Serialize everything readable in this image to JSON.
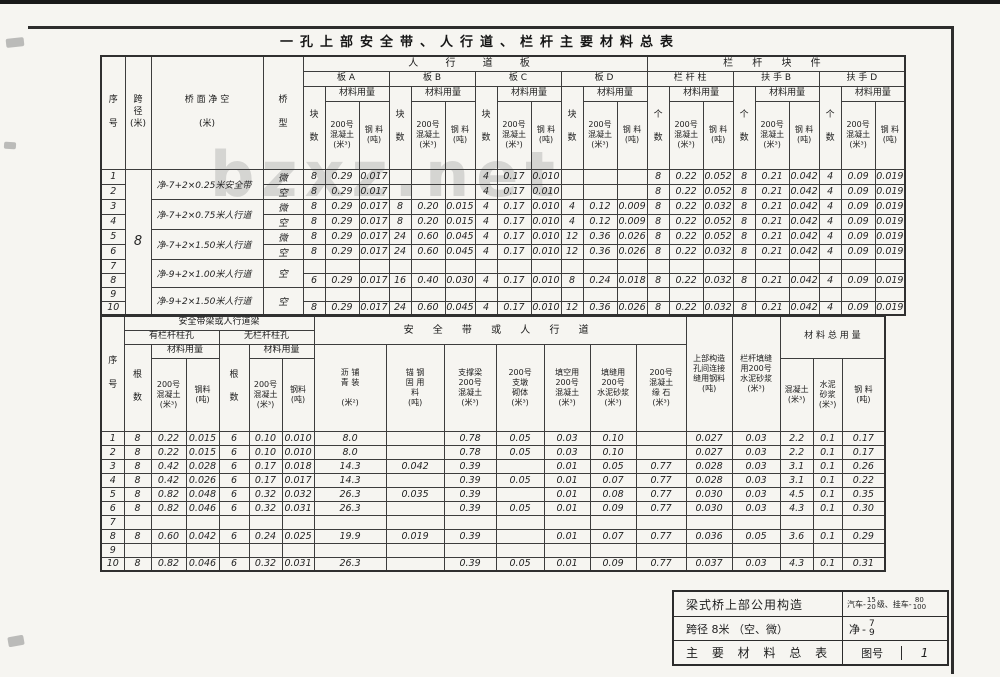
{
  "page": {
    "title": "一孔上部安全带、人行道、栏杆主要材料总表",
    "watermark": "bzxz.net"
  },
  "table1": {
    "headers": {
      "xu_hao": "序\n\n号",
      "kua_jing": "跨\n径\n(米)",
      "qiao_mian": "桥 面 净 空\n\n(米)",
      "qiao_xing": "桥\n\n型",
      "group_renxingdao": "人 行 道 板",
      "group_langan": "栏 杆 块 件",
      "ban_a": "板   A",
      "ban_b": "板   B",
      "ban_c": "板   C",
      "ban_d": "板   D",
      "langanzhu": "栏 杆 柱",
      "fushou_b": "扶 手 B",
      "fushou_d": "扶 手 D",
      "kuai_shu": "块\n\n数",
      "ge_shu": "个\n\n数",
      "cailiao": "材料用量",
      "hunningtu": "200号\n混凝土\n(米³)",
      "gangliao": "钢 料\n(吨)"
    },
    "rows": [
      [
        "1",
        [
          "8",
          10,
          "big"
        ],
        [
          "净-7+2×0.25米安全带",
          2,
          "jk"
        ],
        "微",
        "8",
        "0.29",
        "0.017",
        "",
        "",
        "",
        "4",
        "0.17",
        "0.010",
        "",
        "",
        "",
        "8",
        "0.22",
        "0.052",
        "8",
        "0.21",
        "0.042",
        "4",
        "0.09",
        "0.019"
      ],
      [
        "2",
        "空",
        "8",
        "0.29",
        "0.017",
        "",
        "",
        "",
        "4",
        "0.17",
        "0.010",
        "",
        "",
        "",
        "8",
        "0.22",
        "0.052",
        "8",
        "0.21",
        "0.042",
        "4",
        "0.09",
        "0.019"
      ],
      [
        "3",
        [
          "净-7+2×0.75米人行道",
          2,
          "jk"
        ],
        "微",
        "8",
        "0.29",
        "0.017",
        "8",
        "0.20",
        "0.015",
        "4",
        "0.17",
        "0.010",
        "4",
        "0.12",
        "0.009",
        "8",
        "0.22",
        "0.032",
        "8",
        "0.21",
        "0.042",
        "4",
        "0.09",
        "0.019"
      ],
      [
        "4",
        "空",
        "8",
        "0.29",
        "0.017",
        "8",
        "0.20",
        "0.015",
        "4",
        "0.17",
        "0.010",
        "4",
        "0.12",
        "0.009",
        "8",
        "0.22",
        "0.052",
        "8",
        "0.21",
        "0.042",
        "4",
        "0.09",
        "0.019"
      ],
      [
        "5",
        [
          "净-7+2×1.50米人行道",
          2,
          "jk"
        ],
        "微",
        "8",
        "0.29",
        "0.017",
        "24",
        "0.60",
        "0.045",
        "4",
        "0.17",
        "0.010",
        "12",
        "0.36",
        "0.026",
        "8",
        "0.22",
        "0.052",
        "8",
        "0.21",
        "0.042",
        "4",
        "0.09",
        "0.019"
      ],
      [
        "6",
        "空",
        "8",
        "0.29",
        "0.017",
        "24",
        "0.60",
        "0.045",
        "4",
        "0.17",
        "0.010",
        "12",
        "0.36",
        "0.026",
        "8",
        "0.22",
        "0.032",
        "8",
        "0.21",
        "0.042",
        "4",
        "0.09",
        "0.019"
      ],
      [
        "7",
        [
          "净-9+2×1.00米人行道",
          2,
          "jk"
        ],
        [
          "空",
          2
        ],
        "",
        "",
        "",
        "",
        "",
        "",
        "",
        "",
        "",
        "",
        "",
        "",
        "",
        "",
        "",
        "",
        "",
        "",
        "",
        "",
        ""
      ],
      [
        "8",
        "6",
        "0.29",
        "0.017",
        "16",
        "0.40",
        "0.030",
        "4",
        "0.17",
        "0.010",
        "8",
        "0.24",
        "0.018",
        "8",
        "0.22",
        "0.032",
        "8",
        "0.21",
        "0.042",
        "4",
        "0.09",
        "0.019"
      ],
      [
        "9",
        [
          "净-9+2×1.50米人行道",
          2,
          "jk"
        ],
        [
          "空",
          2
        ],
        "",
        "",
        "",
        "",
        "",
        "",
        "",
        "",
        "",
        "",
        "",
        "",
        "",
        "",
        "",
        "",
        "",
        "",
        "",
        "",
        ""
      ],
      [
        "10",
        "8",
        "0.29",
        "0.017",
        "24",
        "0.60",
        "0.045",
        "4",
        "0.17",
        "0.010",
        "12",
        "0.36",
        "0.026",
        "8",
        "0.22",
        "0.032",
        "8",
        "0.21",
        "0.042",
        "4",
        "0.09",
        "0.019"
      ]
    ]
  },
  "table2": {
    "headers": {
      "xu_hao": "序\n\n号",
      "group_liang": "安全带梁或人行道梁",
      "you_kong": "有栏杆柱孔",
      "wu_kong": "无栏杆柱孔",
      "gen_shu": "根\n\n数",
      "cailiao": "材料用量",
      "hunningtu": "200号\n混凝土\n(米³)",
      "gangliao": "钢料\n(吨)",
      "group_anquandai": "安 全 带 或 人 行 道",
      "liqing": "沥 铺\n青 装\n\n(米²)",
      "maogu": "锚 钢\n固 用\n料\n(吨)",
      "zhichengliang": "支撑梁\n200号\n混凝土\n(米³)",
      "zhidun": "200号\n支墩\n砌体\n(米³)",
      "tiankong": "填空用\n200号\n混凝土\n(米³)",
      "tianfeng": "填缝用\n200号\n水泥砂浆\n(米³)",
      "yuanshi": "200号\n混凝土\n缘 石\n(米³)",
      "shangbu": "上部构造\n孔间连接\n缝用钢料\n(吨)",
      "langan_tianfeng": "栏杆填缝\n用200号\n水泥砂浆\n(米³)",
      "group_total": "材 料 总 用 量",
      "total_htn": "混凝土\n(米³)",
      "total_sn": "水泥\n砂浆\n(米³)",
      "total_gl": "钢 料\n(吨)"
    },
    "rows": [
      [
        "1",
        "8",
        "0.22",
        "0.015",
        "6",
        "0.10",
        "0.010",
        "8.0",
        "",
        "0.78",
        "0.05",
        "0.03",
        "0.10",
        "",
        "0.027",
        "0.03",
        "2.2",
        "0.1",
        "0.17"
      ],
      [
        "2",
        "8",
        "0.22",
        "0.015",
        "6",
        "0.10",
        "0.010",
        "8.0",
        "",
        "0.78",
        "0.05",
        "0.03",
        "0.10",
        "",
        "0.027",
        "0.03",
        "2.2",
        "0.1",
        "0.17"
      ],
      [
        "3",
        "8",
        "0.42",
        "0.028",
        "6",
        "0.17",
        "0.018",
        "14.3",
        "0.042",
        "0.39",
        "",
        "0.01",
        "0.05",
        "0.77",
        "0.028",
        "0.03",
        "3.1",
        "0.1",
        "0.26"
      ],
      [
        "4",
        "8",
        "0.42",
        "0.026",
        "6",
        "0.17",
        "0.017",
        "14.3",
        "",
        "0.39",
        "0.05",
        "0.01",
        "0.07",
        "0.77",
        "0.028",
        "0.03",
        "3.1",
        "0.1",
        "0.22"
      ],
      [
        "5",
        "8",
        "0.82",
        "0.048",
        "6",
        "0.32",
        "0.032",
        "26.3",
        "0.035",
        "0.39",
        "",
        "0.01",
        "0.08",
        "0.77",
        "0.030",
        "0.03",
        "4.5",
        "0.1",
        "0.35"
      ],
      [
        "6",
        "8",
        "0.82",
        "0.046",
        "6",
        "0.32",
        "0.031",
        "26.3",
        "",
        "0.39",
        "0.05",
        "0.01",
        "0.09",
        "0.77",
        "0.030",
        "0.03",
        "4.3",
        "0.1",
        "0.30"
      ],
      [
        "7",
        "",
        "",
        "",
        "",
        "",
        "",
        "",
        "",
        "",
        "",
        "",
        "",
        "",
        "",
        "",
        "",
        "",
        ""
      ],
      [
        "8",
        "8",
        "0.60",
        "0.042",
        "6",
        "0.24",
        "0.025",
        "19.9",
        "0.019",
        "0.39",
        "",
        "0.01",
        "0.07",
        "0.77",
        "0.036",
        "0.05",
        "3.6",
        "0.1",
        "0.29"
      ],
      [
        "9",
        "",
        "",
        "",
        "",
        "",
        "",
        "",
        "",
        "",
        "",
        "",
        "",
        "",
        "",
        "",
        "",
        "",
        ""
      ],
      [
        "10",
        "8",
        "0.82",
        "0.046",
        "6",
        "0.32",
        "0.031",
        "26.3",
        "",
        "0.39",
        "0.05",
        "0.01",
        "0.09",
        "0.77",
        "0.037",
        "0.03",
        "4.3",
        "0.1",
        "0.31"
      ]
    ]
  },
  "title_block": {
    "project": "梁式桥上部公用构造",
    "load_prefix": "汽车-",
    "load_f1_top": "15",
    "load_f1_bot": "20",
    "load_mid": "级、挂车-",
    "load_f2_top": "80",
    "load_f2_bot": "100",
    "span_line": "跨径  8米  （空、微）",
    "clear_prefix": "净-",
    "clear_top": "7",
    "clear_bot": "9",
    "sheet_title": "主 要 材 料 总 表",
    "figure_label": "图号",
    "figure_number": "1"
  }
}
